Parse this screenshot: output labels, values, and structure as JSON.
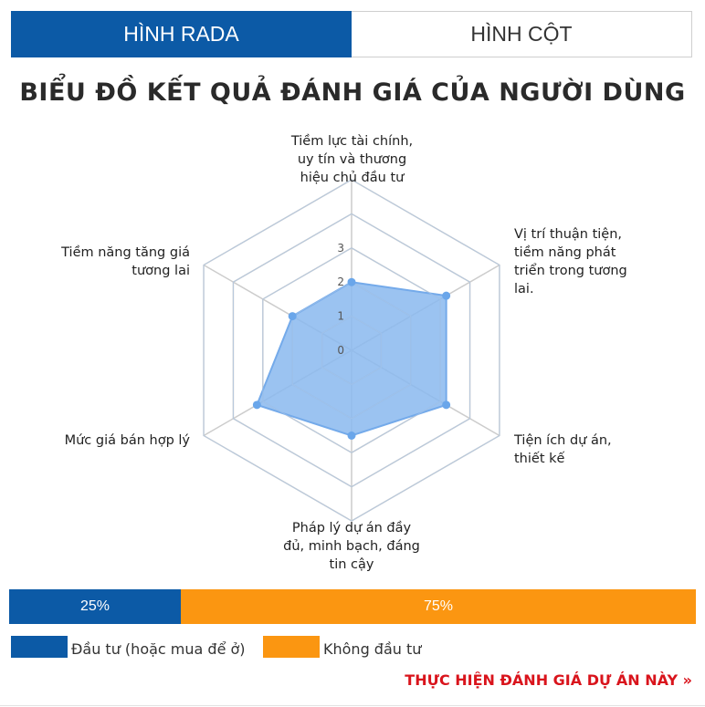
{
  "tabs": [
    {
      "label": "HÌNH RADA",
      "active": true
    },
    {
      "label": "HÌNH CỘT",
      "active": false
    }
  ],
  "title": "BIỂU ĐỒ KẾT QUẢ ĐÁNH GIÁ CỦA NGƯỜI DÙNG",
  "chart_data": {
    "type": "radar",
    "axes": [
      "Tiềm lực tài chính, uy tín và thương hiệu chủ đầu tư",
      "Vị trí thuận tiện, tiềm năng phát triển trong tương lai.",
      "Tiện ích dự án, thiết kế",
      "Pháp lý dự án đầy đủ, minh bạch, đáng tin cậy",
      "Mức giá bán hợp lý",
      "Tiềm năng tăng giá tương lai"
    ],
    "values": [
      2.0,
      3.2,
      3.2,
      2.5,
      3.2,
      2.0
    ],
    "ticks": [
      "0",
      "1",
      "2",
      "3"
    ],
    "range": [
      0,
      5
    ],
    "grid": true,
    "fill_color": "#8ab8ee",
    "line_color": "#74aaea",
    "point_color": "#6aa6ea"
  },
  "ratio": {
    "invest_label": "25%",
    "invest_fraction": 0.25,
    "no_invest_label": "75%",
    "no_invest_fraction": 0.75
  },
  "legend": {
    "invest": "Đầu tư (hoặc mua để ở)",
    "no_invest": "Không đầu tư",
    "invest_color": "#0c5aa6",
    "no_invest_color": "#fb9611"
  },
  "cta": "THỰC HIỆN ĐÁNH GIÁ DỰ ÁN NÀY »"
}
